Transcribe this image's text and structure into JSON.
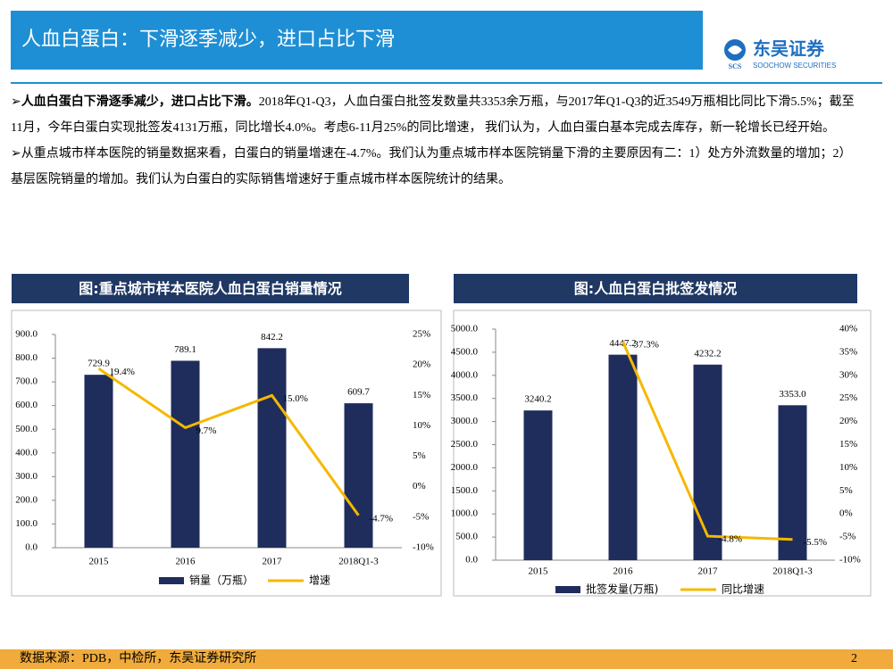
{
  "header": {
    "title": "人血白蛋白：下滑逐季减少，进口占比下滑",
    "logo_mark": "SCS",
    "logo_name": "东吴证券",
    "logo_en": "SOOCHOW SECURITIES"
  },
  "bullets": [
    {
      "bold": "人血白蛋白下滑逐季减少，进口占比下滑。",
      "text": "2018年Q1-Q3，人血白蛋白批签发数量共3353余万瓶，与2017年Q1-Q3的近3549万瓶相比同比下滑5.5%；截至11月，今年白蛋白实现批签发4131万瓶，同比增长4.0%。考虑6-11月25%的同比增速， 我们认为，人血白蛋白基本完成去库存，新一轮增长已经开始。"
    },
    {
      "text": "从重点城市样本医院的销量数据来看，白蛋白的销量增速在-4.7%。我们认为重点城市样本医院销量下滑的主要原因有二：1）处方外流数量的增加；2）基层医院销量的增加。我们认为白蛋白的实际销售增速好于重点城市样本医院统计的结果。"
    }
  ],
  "chart_data": [
    {
      "type": "bar",
      "title": "图:重点城市样本医院人血白蛋白销量情况",
      "categories": [
        "2015",
        "2016",
        "2017",
        "2018Q1-3"
      ],
      "series": [
        {
          "name": "销量（万瓶）",
          "color": "#1f2d5c",
          "values": [
            729.9,
            789.1,
            842.2,
            609.7
          ]
        },
        {
          "name": "增速",
          "color": "#f5b800",
          "type": "line",
          "axis": "y2",
          "values": [
            19.4,
            9.7,
            15.0,
            -4.7
          ],
          "value_labels": [
            "19.4%",
            "9.7%",
            "15.0%",
            "-4.7%"
          ]
        }
      ],
      "ylim": [
        0,
        900
      ],
      "yticks": [
        {
          "value": 0,
          "label": "0.0"
        },
        {
          "value": 100,
          "label": "100.0"
        },
        {
          "value": 200,
          "label": "200.0"
        },
        {
          "value": 300,
          "label": "300.0"
        },
        {
          "value": 400,
          "label": "400.0"
        },
        {
          "value": 500,
          "label": "500.0"
        },
        {
          "value": 600,
          "label": "600.0"
        },
        {
          "value": 700,
          "label": "700.0"
        },
        {
          "value": 800,
          "label": "800.0"
        },
        {
          "value": 900,
          "label": "900.0"
        }
      ],
      "y2lim": [
        -10,
        25
      ],
      "y2ticks": [
        {
          "value": -10,
          "label": "-10%"
        },
        {
          "value": -5,
          "label": "-5%"
        },
        {
          "value": 0,
          "label": "0%"
        },
        {
          "value": 5,
          "label": "5%"
        },
        {
          "value": 10,
          "label": "10%"
        },
        {
          "value": 15,
          "label": "15%"
        },
        {
          "value": 20,
          "label": "20%"
        },
        {
          "value": 25,
          "label": "25%"
        }
      ],
      "grid": false,
      "legend": "bottom"
    },
    {
      "type": "bar",
      "title": "图:人血白蛋白批签发情况",
      "categories": [
        "2015",
        "2016",
        "2017",
        "2018Q1-3"
      ],
      "series": [
        {
          "name": "批签发量(万瓶)",
          "color": "#1f2d5c",
          "values": [
            3240.2,
            4447.2,
            4232.2,
            3353
          ],
          "value_labels": [
            "3240.2",
            "4447.2",
            "4232.2",
            "3353.0"
          ]
        },
        {
          "name": "同比增速",
          "color": "#f5b800",
          "type": "line",
          "axis": "y2",
          "values": [
            null,
            37.3,
            -4.8,
            -5.5
          ],
          "value_labels": [
            null,
            "37.3%",
            "-4.8%",
            "-5.5%"
          ]
        }
      ],
      "ylim": [
        0,
        5000
      ],
      "yticks": [
        {
          "value": 0,
          "label": "0.0"
        },
        {
          "value": 500,
          "label": "500.0"
        },
        {
          "value": 1000,
          "label": "1000.0"
        },
        {
          "value": 1500,
          "label": "1500.0"
        },
        {
          "value": 2000,
          "label": "2000.0"
        },
        {
          "value": 2500,
          "label": "2500.0"
        },
        {
          "value": 3000,
          "label": "3000.0"
        },
        {
          "value": 3500,
          "label": "3500.0"
        },
        {
          "value": 4000,
          "label": "4000.0"
        },
        {
          "value": 4500,
          "label": "4500.0"
        },
        {
          "value": 5000,
          "label": "5000.0"
        }
      ],
      "y2lim": [
        -10,
        40
      ],
      "y2ticks": [
        {
          "value": -10,
          "label": "-10%"
        },
        {
          "value": -5,
          "label": "-5%"
        },
        {
          "value": 0,
          "label": "0%"
        },
        {
          "value": 5,
          "label": "5%"
        },
        {
          "value": 10,
          "label": "10%"
        },
        {
          "value": 15,
          "label": "15%"
        },
        {
          "value": 20,
          "label": "20%"
        },
        {
          "value": 25,
          "label": "25%"
        },
        {
          "value": 30,
          "label": "30%"
        },
        {
          "value": 35,
          "label": "35%"
        },
        {
          "value": 40,
          "label": "40%"
        }
      ],
      "grid": false,
      "legend": "bottom"
    }
  ],
  "footer": {
    "source": "数据来源：PDB，中检所，东吴证券研究所",
    "page": "2"
  }
}
